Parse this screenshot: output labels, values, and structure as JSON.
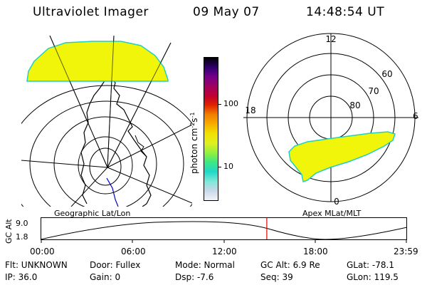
{
  "header": {
    "title": "Ultraviolet Imager",
    "date": "09 May 07",
    "time": "14:48:54 UT"
  },
  "colorbar": {
    "unit_label": "photon cm",
    "unit_sup1": "-2",
    "unit_mid": "s",
    "unit_sup2": "-1",
    "tick_100": "100",
    "tick_10": "10",
    "colors": [
      "#f0f4f8",
      "#c8d8e8",
      "#80e8d8",
      "#20d8c8",
      "#40e880",
      "#90f040",
      "#e0f020",
      "#f0e000",
      "#f8b000",
      "#f08000",
      "#e02000",
      "#c00030",
      "#a00060",
      "#70008a",
      "#300070",
      "#000000"
    ]
  },
  "polar_plot": {
    "mlt_top": "12",
    "mlt_bottom": "0",
    "mlt_left": "18",
    "mlt_right": "6",
    "lat_60": "60",
    "lat_70": "70",
    "lat_80": "80"
  },
  "timeline": {
    "y_axis_label": "GC Alt",
    "y_max": "9.0",
    "y_min": "1.8",
    "left_title": "Geographic Lat/Lon",
    "right_title": "Apex MLat/MLT",
    "x_ticks": [
      "00:00",
      "06:00",
      "12:00",
      "18:00",
      "23:59"
    ],
    "marker_time": "14:48:54",
    "marker_color": "#e00000"
  },
  "status": {
    "filter": "Flt: UNKNOWN",
    "door": "Door: Fullex",
    "mode": "Mode: Normal",
    "gc_alt": "GC Alt: 6.9 Re",
    "glat": "GLat:  -78.1",
    "ip": "IP: 36.0",
    "gain": "Gain:  0",
    "dsp": "Dsp:     -7.6",
    "seq": "Seq: 39",
    "glon": "GLon:  119.5"
  },
  "colors": {
    "aurora_fill": "#f0f50a",
    "aurora_edge": "#20d0c0"
  }
}
